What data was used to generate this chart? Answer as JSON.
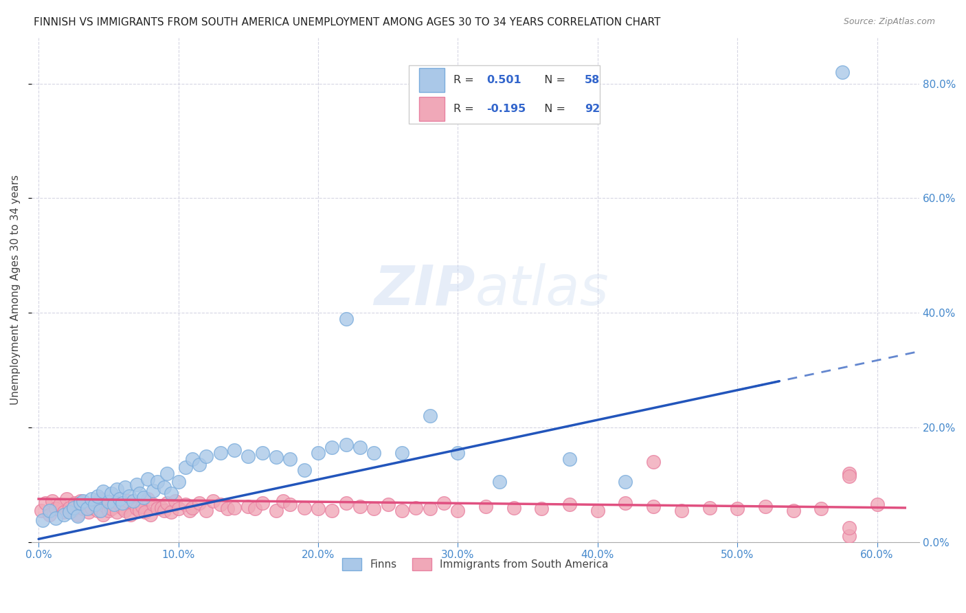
{
  "title": "FINNISH VS IMMIGRANTS FROM SOUTH AMERICA UNEMPLOYMENT AMONG AGES 30 TO 34 YEARS CORRELATION CHART",
  "source": "Source: ZipAtlas.com",
  "ylabel": "Unemployment Among Ages 30 to 34 years",
  "ylim": [
    0.0,
    0.88
  ],
  "xlim": [
    -0.005,
    0.63
  ],
  "finn_R": 0.501,
  "finn_N": 58,
  "imm_R": -0.195,
  "imm_N": 92,
  "finn_color": "#aac8e8",
  "imm_color": "#f0a8b8",
  "finn_edge_color": "#7aacdc",
  "imm_edge_color": "#e880a0",
  "finn_line_color": "#2255bb",
  "imm_line_color": "#e05080",
  "right_axis_color": "#4488cc",
  "grid_color": "#ccccdd",
  "background_color": "#ffffff",
  "legend_R_color": "#333333",
  "legend_val_color": "#3366cc",
  "watermark_color": "#c8d8f0",
  "finn_scatter_x": [
    0.003,
    0.008,
    0.012,
    0.018,
    0.022,
    0.025,
    0.028,
    0.03,
    0.032,
    0.035,
    0.038,
    0.04,
    0.042,
    0.044,
    0.046,
    0.05,
    0.052,
    0.054,
    0.056,
    0.058,
    0.06,
    0.062,
    0.065,
    0.068,
    0.07,
    0.072,
    0.075,
    0.078,
    0.082,
    0.085,
    0.09,
    0.092,
    0.095,
    0.1,
    0.105,
    0.11,
    0.115,
    0.12,
    0.13,
    0.14,
    0.15,
    0.16,
    0.17,
    0.18,
    0.19,
    0.2,
    0.21,
    0.22,
    0.23,
    0.24,
    0.26,
    0.28,
    0.3,
    0.33,
    0.38,
    0.42,
    0.22,
    0.575
  ],
  "finn_scatter_y": [
    0.038,
    0.055,
    0.042,
    0.048,
    0.052,
    0.06,
    0.045,
    0.068,
    0.072,
    0.058,
    0.075,
    0.065,
    0.08,
    0.055,
    0.088,
    0.07,
    0.085,
    0.065,
    0.092,
    0.075,
    0.068,
    0.095,
    0.08,
    0.072,
    0.1,
    0.085,
    0.078,
    0.11,
    0.09,
    0.105,
    0.095,
    0.12,
    0.085,
    0.105,
    0.13,
    0.145,
    0.135,
    0.15,
    0.155,
    0.16,
    0.15,
    0.155,
    0.148,
    0.145,
    0.125,
    0.155,
    0.165,
    0.17,
    0.165,
    0.155,
    0.155,
    0.22,
    0.155,
    0.105,
    0.145,
    0.105,
    0.39,
    0.82
  ],
  "imm_scatter_x": [
    0.002,
    0.005,
    0.008,
    0.01,
    0.012,
    0.015,
    0.018,
    0.02,
    0.022,
    0.024,
    0.026,
    0.028,
    0.03,
    0.032,
    0.034,
    0.036,
    0.038,
    0.04,
    0.042,
    0.044,
    0.046,
    0.048,
    0.05,
    0.052,
    0.054,
    0.056,
    0.058,
    0.06,
    0.062,
    0.064,
    0.066,
    0.068,
    0.07,
    0.072,
    0.074,
    0.076,
    0.078,
    0.08,
    0.082,
    0.085,
    0.088,
    0.09,
    0.092,
    0.095,
    0.098,
    0.1,
    0.105,
    0.108,
    0.11,
    0.115,
    0.12,
    0.125,
    0.13,
    0.135,
    0.14,
    0.15,
    0.155,
    0.16,
    0.17,
    0.175,
    0.18,
    0.19,
    0.2,
    0.21,
    0.22,
    0.23,
    0.24,
    0.25,
    0.26,
    0.27,
    0.28,
    0.29,
    0.3,
    0.32,
    0.34,
    0.36,
    0.38,
    0.4,
    0.42,
    0.44,
    0.46,
    0.48,
    0.5,
    0.52,
    0.54,
    0.56,
    0.58,
    0.6,
    0.44,
    0.58,
    0.58,
    0.58
  ],
  "imm_scatter_y": [
    0.055,
    0.068,
    0.048,
    0.072,
    0.058,
    0.065,
    0.052,
    0.075,
    0.06,
    0.055,
    0.068,
    0.048,
    0.072,
    0.058,
    0.065,
    0.052,
    0.06,
    0.068,
    0.055,
    0.075,
    0.048,
    0.062,
    0.055,
    0.058,
    0.07,
    0.052,
    0.065,
    0.06,
    0.055,
    0.072,
    0.048,
    0.068,
    0.058,
    0.055,
    0.062,
    0.052,
    0.075,
    0.048,
    0.065,
    0.058,
    0.06,
    0.055,
    0.068,
    0.052,
    0.072,
    0.058,
    0.065,
    0.055,
    0.06,
    0.068,
    0.055,
    0.072,
    0.065,
    0.058,
    0.06,
    0.062,
    0.058,
    0.068,
    0.055,
    0.072,
    0.065,
    0.06,
    0.058,
    0.055,
    0.068,
    0.062,
    0.058,
    0.065,
    0.055,
    0.06,
    0.058,
    0.068,
    0.055,
    0.062,
    0.06,
    0.058,
    0.065,
    0.055,
    0.068,
    0.062,
    0.055,
    0.06,
    0.058,
    0.062,
    0.055,
    0.058,
    0.01,
    0.065,
    0.14,
    0.12,
    0.115,
    0.025
  ]
}
